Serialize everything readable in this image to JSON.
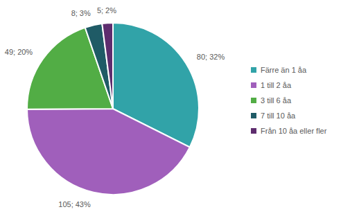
{
  "chart_data": {
    "type": "pie",
    "categories": [
      "Färre än 1 åa",
      "1 till 2 åa",
      "3 till 6 åa",
      "7 till 10 åa",
      "Från 10 åa eller fler"
    ],
    "values": [
      80,
      105,
      49,
      8,
      5
    ],
    "value_labels": [
      "80; 32%",
      "105; 43%",
      "49; 20%",
      "8; 3%",
      "5; 2%"
    ],
    "colors": [
      "#31a3a8",
      "#a05fbb",
      "#52ad45",
      "#1f5b66",
      "#5e2d6e"
    ],
    "data_labels": true,
    "legend": "right"
  }
}
